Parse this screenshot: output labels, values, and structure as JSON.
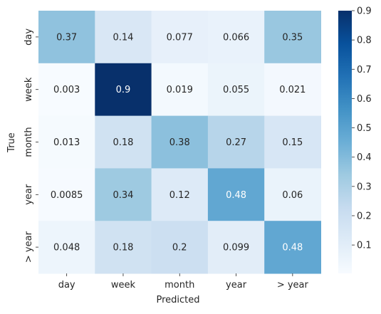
{
  "chart_data": {
    "type": "heatmap",
    "title": "",
    "xlabel": "Predicted",
    "ylabel": "True",
    "x_categories": [
      "day",
      "week",
      "month",
      "year",
      "> year"
    ],
    "y_categories": [
      "day",
      "week",
      "month",
      "year",
      "> year"
    ],
    "values": [
      [
        0.37,
        0.14,
        0.077,
        0.066,
        0.35
      ],
      [
        0.003,
        0.9,
        0.019,
        0.055,
        0.021
      ],
      [
        0.013,
        0.18,
        0.38,
        0.27,
        0.15
      ],
      [
        0.0085,
        0.34,
        0.12,
        0.48,
        0.06
      ],
      [
        0.048,
        0.18,
        0.2,
        0.099,
        0.48
      ]
    ],
    "value_labels": [
      [
        "0.37",
        "0.14",
        "0.077",
        "0.066",
        "0.35"
      ],
      [
        "0.003",
        "0.9",
        "0.019",
        "0.055",
        "0.021"
      ],
      [
        "0.013",
        "0.18",
        "0.38",
        "0.27",
        "0.15"
      ],
      [
        "0.0085",
        "0.34",
        "0.12",
        "0.48",
        "0.06"
      ],
      [
        "0.048",
        "0.18",
        "0.2",
        "0.099",
        "0.48"
      ]
    ],
    "colormap": "Blues",
    "colorbar": {
      "range": [
        0.003,
        0.9
      ],
      "ticks": [
        0.1,
        0.2,
        0.3,
        0.4,
        0.5,
        0.6,
        0.7,
        0.8,
        0.9
      ],
      "tick_labels": [
        "0.1",
        "0.2",
        "0.3",
        "0.4",
        "0.5",
        "0.6",
        "0.7",
        "0.8",
        "0.9"
      ]
    },
    "grid": false,
    "legend": "colorbar-right"
  }
}
